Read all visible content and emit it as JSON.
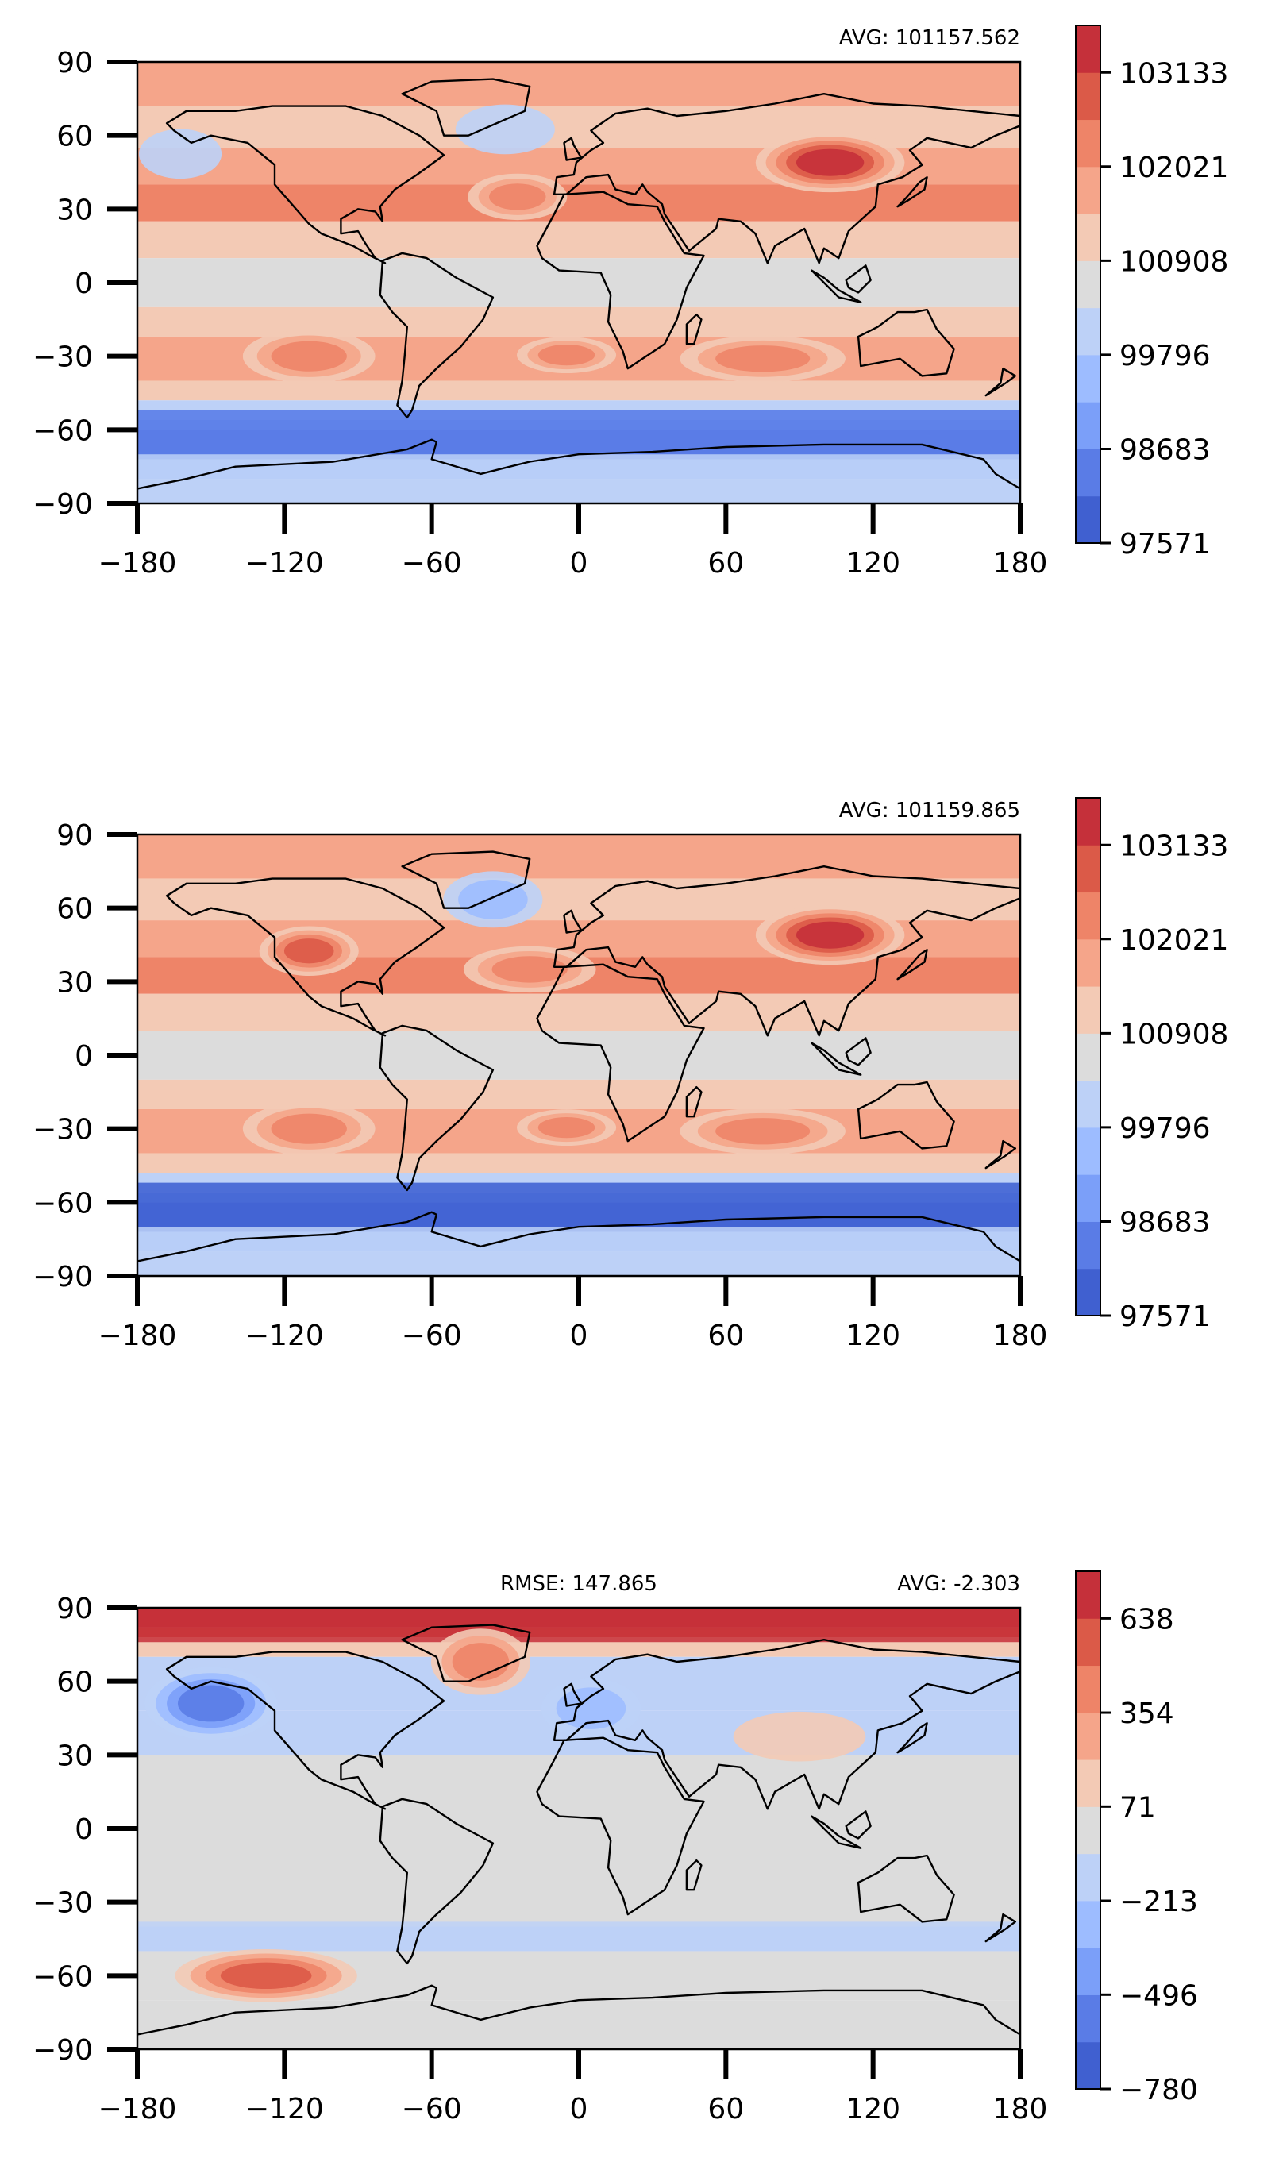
{
  "chart_data": [
    {
      "type": "heatmap",
      "title": "",
      "xlabel": "",
      "ylabel": "",
      "xlim": [
        -180,
        180
      ],
      "ylim": [
        -90,
        90
      ],
      "x_ticks": [
        "−180",
        "−120",
        "−60",
        "0",
        "60",
        "120",
        "180"
      ],
      "y_ticks": [
        "90",
        "60",
        "30",
        "0",
        "−30",
        "−60",
        "−90"
      ],
      "annotation_right": "AVG: 101157.562",
      "annotation_center": "",
      "colorbar": {
        "range": [
          97571,
          103689
        ],
        "tick_values": [
          97571,
          98683,
          99796,
          100908,
          102021,
          103133
        ],
        "tick_labels": [
          "97571",
          "98683",
          "99796",
          "100908",
          "102021",
          "103133"
        ],
        "levels": 11
      },
      "colors": [
        "#4060d0",
        "#5a7ce6",
        "#7b9ff9",
        "#9dbcff",
        "#bdd1f7",
        "#dcdcdc",
        "#f3cab5",
        "#f5a58a",
        "#ee8468",
        "#db5a48",
        "#c5303a"
      ],
      "features": [
        {
          "region": "southern-ocean-low",
          "lon": [
            -180,
            180
          ],
          "lat": [
            -72,
            -52
          ],
          "level": 1
        },
        {
          "region": "antarctica",
          "lon": [
            -180,
            180
          ],
          "lat": [
            -90,
            -70
          ],
          "level": 4
        },
        {
          "region": "equatorial-band",
          "lon": [
            -180,
            180
          ],
          "lat": [
            -8,
            8
          ],
          "level": 5
        },
        {
          "region": "siberian-high",
          "lon": [
            80,
            125
          ],
          "lat": [
            40,
            58
          ],
          "level": 10
        },
        {
          "region": "iceland-low",
          "lon": [
            -45,
            -15
          ],
          "lat": [
            55,
            70
          ],
          "level": 4
        },
        {
          "region": "aleutian-low",
          "lon": [
            -175,
            -150
          ],
          "lat": [
            45,
            60
          ],
          "level": 4
        },
        {
          "region": "azores-high",
          "lon": [
            -40,
            -10
          ],
          "lat": [
            28,
            42
          ],
          "level": 8
        },
        {
          "region": "south-pacific-high",
          "lon": [
            -130,
            -90
          ],
          "lat": [
            -38,
            -22
          ],
          "level": 8
        },
        {
          "region": "south-atlantic-high",
          "lon": [
            -20,
            10
          ],
          "lat": [
            -35,
            -24
          ],
          "level": 8
        },
        {
          "region": "south-indian-high",
          "lon": [
            50,
            100
          ],
          "lat": [
            -38,
            -24
          ],
          "level": 8
        }
      ]
    },
    {
      "type": "heatmap",
      "title": "",
      "xlabel": "",
      "ylabel": "",
      "xlim": [
        -180,
        180
      ],
      "ylim": [
        -90,
        90
      ],
      "x_ticks": [
        "−180",
        "−120",
        "−60",
        "0",
        "60",
        "120",
        "180"
      ],
      "y_ticks": [
        "90",
        "60",
        "30",
        "0",
        "−30",
        "−60",
        "−90"
      ],
      "annotation_right": "AVG: 101159.865",
      "annotation_center": "",
      "colorbar": {
        "range": [
          97571,
          103689
        ],
        "tick_values": [
          97571,
          98683,
          99796,
          100908,
          102021,
          103133
        ],
        "tick_labels": [
          "97571",
          "98683",
          "99796",
          "100908",
          "102021",
          "103133"
        ],
        "levels": 11
      },
      "colors": [
        "#4060d0",
        "#5a7ce6",
        "#7b9ff9",
        "#9dbcff",
        "#bdd1f7",
        "#dcdcdc",
        "#f3cab5",
        "#f5a58a",
        "#ee8468",
        "#db5a48",
        "#c5303a"
      ],
      "features": [
        {
          "region": "southern-ocean-low",
          "lon": [
            -180,
            180
          ],
          "lat": [
            -72,
            -52
          ],
          "level": 0
        },
        {
          "region": "antarctica",
          "lon": [
            -180,
            180
          ],
          "lat": [
            -90,
            -70
          ],
          "level": 4
        },
        {
          "region": "equatorial-band",
          "lon": [
            -180,
            180
          ],
          "lat": [
            -8,
            8
          ],
          "level": 5
        },
        {
          "region": "siberian-high",
          "lon": [
            80,
            125
          ],
          "lat": [
            40,
            58
          ],
          "level": 10
        },
        {
          "region": "iceland-low",
          "lon": [
            -50,
            -20
          ],
          "lat": [
            55,
            72
          ],
          "level": 3
        },
        {
          "region": "north-america-high",
          "lon": [
            -125,
            -95
          ],
          "lat": [
            35,
            50
          ],
          "level": 9
        },
        {
          "region": "azores-high",
          "lon": [
            -40,
            0
          ],
          "lat": [
            28,
            42
          ],
          "level": 8
        },
        {
          "region": "south-pacific-high",
          "lon": [
            -130,
            -90
          ],
          "lat": [
            -38,
            -22
          ],
          "level": 8
        },
        {
          "region": "south-atlantic-high",
          "lon": [
            -20,
            10
          ],
          "lat": [
            -35,
            -24
          ],
          "level": 8
        },
        {
          "region": "south-indian-high",
          "lon": [
            50,
            100
          ],
          "lat": [
            -38,
            -24
          ],
          "level": 8
        }
      ]
    },
    {
      "type": "heatmap",
      "title": "",
      "xlabel": "",
      "ylabel": "",
      "xlim": [
        -180,
        180
      ],
      "ylim": [
        -90,
        90
      ],
      "x_ticks": [
        "−180",
        "−120",
        "−60",
        "0",
        "60",
        "120",
        "180"
      ],
      "y_ticks": [
        "90",
        "60",
        "30",
        "0",
        "−30",
        "−60",
        "−90"
      ],
      "annotation_right": "AVG: -2.303",
      "annotation_center": "RMSE: 147.865",
      "colorbar": {
        "range": [
          -780,
          780
        ],
        "tick_values": [
          -780,
          -496,
          -213,
          71,
          354,
          638
        ],
        "tick_labels": [
          "−780",
          "−496",
          "−213",
          "71",
          "354",
          "638"
        ],
        "levels": 11
      },
      "colors": [
        "#4060d0",
        "#5a7ce6",
        "#7b9ff9",
        "#9dbcff",
        "#bdd1f7",
        "#dcdcdc",
        "#f3cab5",
        "#f5a58a",
        "#ee8468",
        "#db5a48",
        "#c5303a"
      ],
      "features": [
        {
          "region": "arctic-positive",
          "lon": [
            -180,
            180
          ],
          "lat": [
            76,
            90
          ],
          "level": 10
        },
        {
          "region": "greenland-positive",
          "lon": [
            -55,
            -25
          ],
          "lat": [
            58,
            78
          ],
          "level": 8
        },
        {
          "region": "north-pacific-negative",
          "lon": [
            -170,
            -130
          ],
          "lat": [
            40,
            62
          ],
          "level": 1
        },
        {
          "region": "north-atlantic-negative",
          "lon": [
            -10,
            20
          ],
          "lat": [
            40,
            58
          ],
          "level": 3
        },
        {
          "region": "south-pacific-positive",
          "lon": [
            -155,
            -100
          ],
          "lat": [
            -68,
            -52
          ],
          "level": 9
        },
        {
          "region": "asia-positive",
          "lon": [
            70,
            110
          ],
          "lat": [
            30,
            45
          ],
          "level": 6
        },
        {
          "region": "southern-negative-band",
          "lon": [
            -180,
            180
          ],
          "lat": [
            -48,
            -38
          ],
          "level": 4
        }
      ]
    }
  ]
}
